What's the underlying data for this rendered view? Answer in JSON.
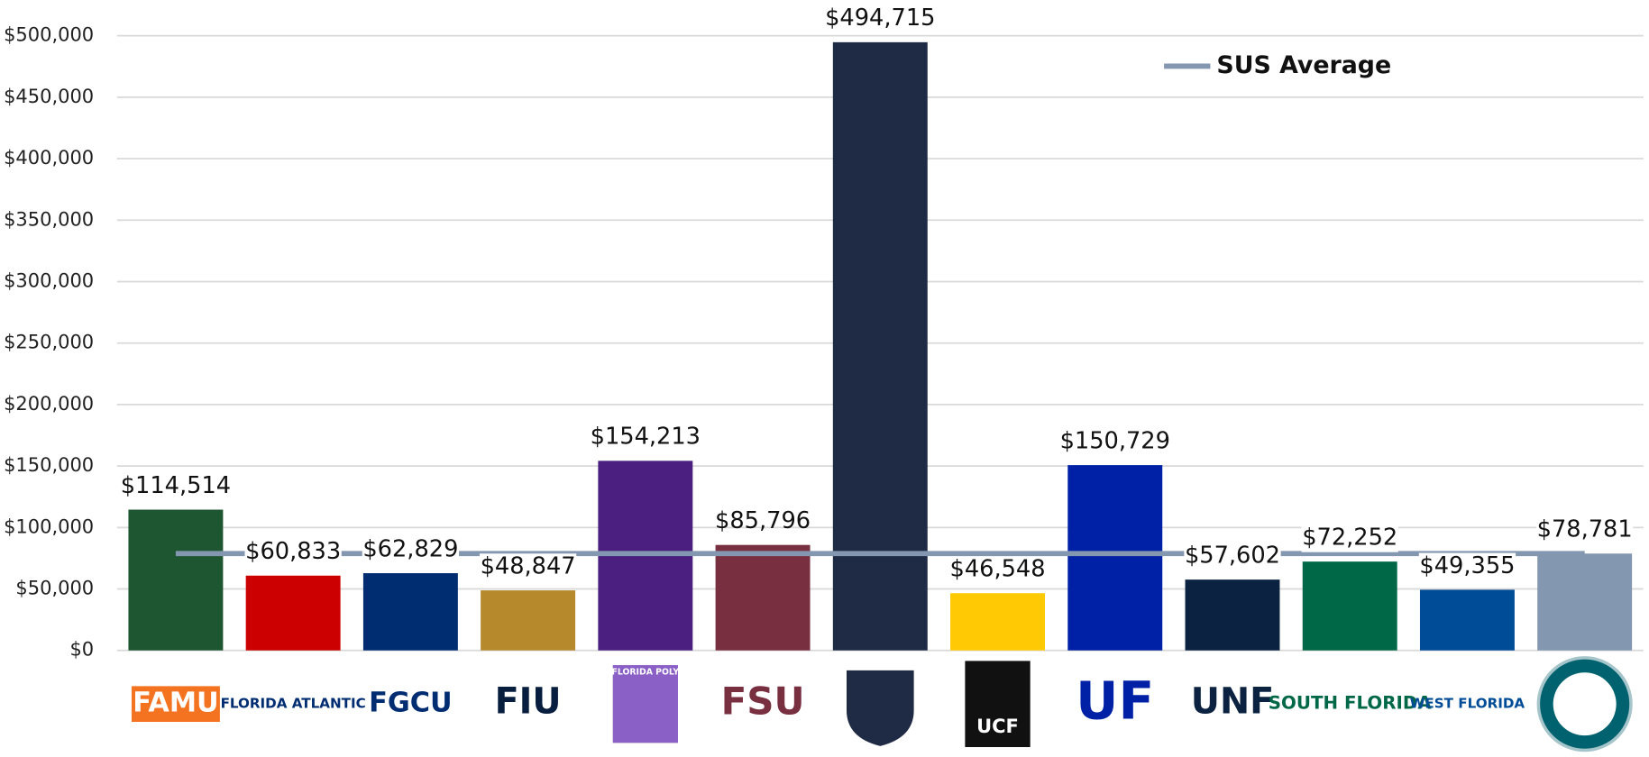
{
  "chart_data": {
    "type": "bar",
    "categories": [
      "FAMU",
      "FLORIDA ATLANTIC",
      "FGCU",
      "FIU",
      "FLORIDA POLY",
      "FSU",
      null,
      "UCF",
      "UF",
      "UNF",
      "SOUTH FLORIDA",
      "WEST FLORIDA",
      null
    ],
    "values": [
      114514,
      60833,
      62829,
      48847,
      154213,
      85796,
      494715,
      46548,
      150729,
      57602,
      72252,
      49355,
      78781
    ],
    "value_labels": [
      "$114,514",
      "$60,833",
      "$62,829",
      "$48,847",
      "$154,213",
      "$85,796",
      "$494,715",
      "$46,548",
      "$150,729",
      "$57,602",
      "$72,252",
      "$49,355",
      "$78,781"
    ],
    "colors": [
      "#1e5631",
      "#cc0000",
      "#002d72",
      "#b5892c",
      "#4a1f7f",
      "#782f40",
      "#1f2a44",
      "#ffc904",
      "#0021a5",
      "#0b2240",
      "#006747",
      "#004c97",
      "#8497b0"
    ],
    "series": [
      {
        "name": "SUS Average",
        "color": "#8497b0",
        "values": [
          78781,
          78781,
          78781,
          78781,
          78781,
          78781,
          78781,
          78781,
          78781,
          78781,
          78781,
          78781,
          78781
        ]
      }
    ],
    "ylim": [
      0,
      500000
    ],
    "yticks": [
      {
        "value": 0,
        "label": "$0"
      },
      {
        "value": 50000,
        "label": "$50,000"
      },
      {
        "value": 100000,
        "label": "$100,000"
      },
      {
        "value": 150000,
        "label": "$150,000"
      },
      {
        "value": 200000,
        "label": "$200,000"
      },
      {
        "value": 250000,
        "label": "$250,000"
      },
      {
        "value": 300000,
        "label": "$300,000"
      },
      {
        "value": 350000,
        "label": "$350,000"
      },
      {
        "value": 400000,
        "label": "$400,000"
      },
      {
        "value": 450000,
        "label": "$450,000"
      },
      {
        "value": 500000,
        "label": "$500,000"
      }
    ],
    "grid": true,
    "legend": "top-right"
  }
}
